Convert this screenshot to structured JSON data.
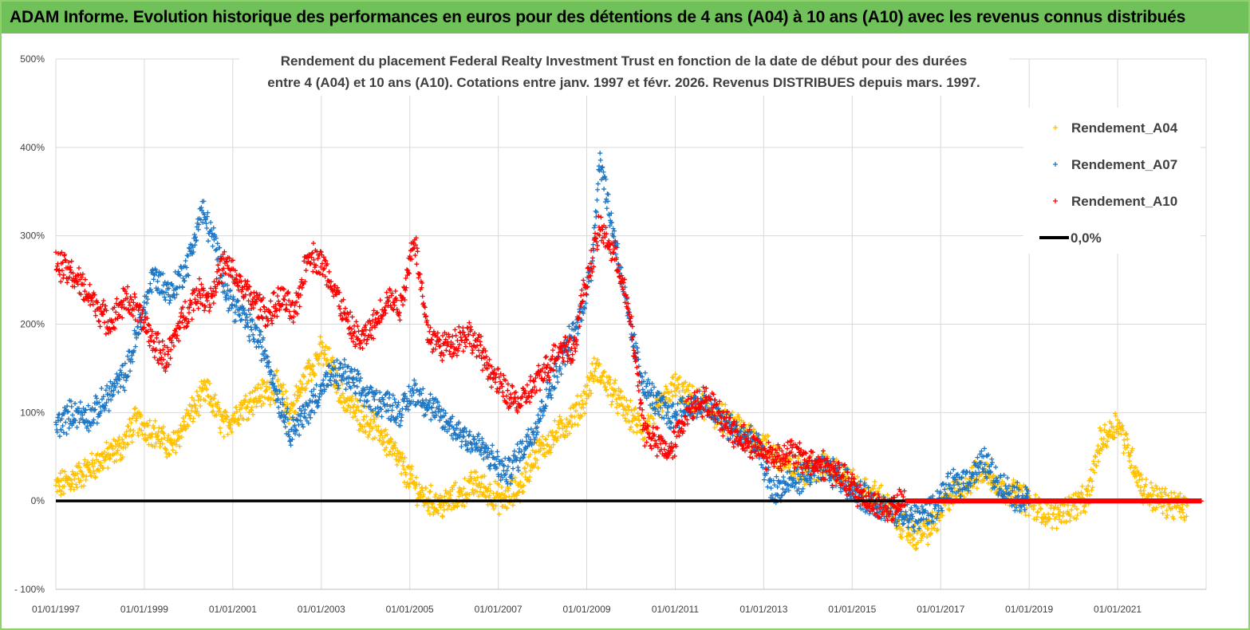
{
  "header": {
    "title": "ADAM Informe. Evolution historique des performances en euros pour des détentions de 4 ans (A04) à 10 ans (A10) avec les revenus connus distribués"
  },
  "colors": {
    "header_bg": "#70c15a",
    "A04": "#ffc000",
    "A07": "#1f77c4",
    "A10": "#ff0000",
    "zero": "#000000"
  },
  "chart_data": {
    "type": "scatter",
    "title_lines": [
      "Rendement du placement Federal Realty Investment Trust en fonction de la date de début pour des durées",
      "entre 4 (A04) et 10 ans (A10).  Cotations entre janv. 1997 et févr. 2026. Revenus  DISTRIBUES depuis mars. 1997."
    ],
    "xlabel": "",
    "ylabel": "",
    "x_ticks": [
      "01/01/1997",
      "01/01/1999",
      "01/01/2001",
      "01/01/2003",
      "01/01/2005",
      "01/01/2007",
      "01/01/2009",
      "01/01/2011",
      "01/01/2013",
      "01/01/2015",
      "01/01/2017",
      "01/01/2019",
      "01/01/2021"
    ],
    "y_ticks": [
      "- 100%",
      "0%",
      "100%",
      "200%",
      "300%",
      "400%",
      "500%"
    ],
    "ylim": [
      -100,
      500
    ],
    "xlim": [
      1997.0,
      2023.0
    ],
    "grid": "horizontal and vertical",
    "legend_position": "top-right",
    "legend": [
      "Rendement_A04",
      "Rendement_A07",
      "Rendement_A10",
      "0,0%"
    ],
    "series": [
      {
        "name": "Rendement_A04",
        "marker": "+",
        "points": [
          [
            1997.0,
            15
          ],
          [
            1997.5,
            28
          ],
          [
            1998.0,
            45
          ],
          [
            1998.5,
            62
          ],
          [
            1998.8,
            90
          ],
          [
            1999.2,
            78
          ],
          [
            1999.6,
            60
          ],
          [
            2000.0,
            95
          ],
          [
            2000.4,
            125
          ],
          [
            2000.8,
            85
          ],
          [
            2001.2,
            105
          ],
          [
            2001.6,
            120
          ],
          [
            2002.0,
            130
          ],
          [
            2002.3,
            100
          ],
          [
            2002.7,
            145
          ],
          [
            2003.0,
            170
          ],
          [
            2003.2,
            155
          ],
          [
            2003.5,
            115
          ],
          [
            2003.9,
            95
          ],
          [
            2004.3,
            80
          ],
          [
            2004.7,
            50
          ],
          [
            2005.0,
            25
          ],
          [
            2005.3,
            5
          ],
          [
            2005.7,
            -5
          ],
          [
            2006.1,
            5
          ],
          [
            2006.5,
            20
          ],
          [
            2006.8,
            10
          ],
          [
            2007.1,
            0
          ],
          [
            2007.5,
            15
          ],
          [
            2007.8,
            50
          ],
          [
            2008.2,
            70
          ],
          [
            2008.6,
            90
          ],
          [
            2008.9,
            110
          ],
          [
            2009.2,
            150
          ],
          [
            2009.5,
            130
          ],
          [
            2009.9,
            100
          ],
          [
            2010.3,
            80
          ],
          [
            2010.7,
            110
          ],
          [
            2011.0,
            130
          ],
          [
            2011.3,
            115
          ],
          [
            2011.7,
            105
          ],
          [
            2012.0,
            95
          ],
          [
            2012.4,
            85
          ],
          [
            2012.8,
            70
          ],
          [
            2013.2,
            55
          ],
          [
            2013.6,
            35
          ],
          [
            2014.0,
            35
          ],
          [
            2014.4,
            40
          ],
          [
            2014.8,
            30
          ],
          [
            2015.2,
            10
          ],
          [
            2015.6,
            5
          ],
          [
            2016.0,
            -20
          ],
          [
            2016.4,
            -40
          ],
          [
            2016.8,
            -30
          ],
          [
            2017.2,
            5
          ],
          [
            2017.6,
            20
          ],
          [
            2018.0,
            35
          ],
          [
            2018.4,
            15
          ],
          [
            2018.8,
            5
          ],
          [
            2019.2,
            -10
          ],
          [
            2019.6,
            -15
          ],
          [
            2020.0,
            -5
          ],
          [
            2020.3,
            0
          ],
          [
            2020.6,
            65
          ],
          [
            2021.0,
            90
          ],
          [
            2021.3,
            50
          ],
          [
            2021.6,
            10
          ],
          [
            2022.0,
            0
          ],
          [
            2022.3,
            -5
          ],
          [
            2022.6,
            -10
          ]
        ]
      },
      {
        "name": "Rendement_A07",
        "marker": "+",
        "points": [
          [
            1997.0,
            85
          ],
          [
            1997.4,
            100
          ],
          [
            1997.8,
            95
          ],
          [
            1998.2,
            120
          ],
          [
            1998.6,
            145
          ],
          [
            1998.9,
            200
          ],
          [
            1999.2,
            255
          ],
          [
            1999.6,
            235
          ],
          [
            2000.0,
            270
          ],
          [
            2000.3,
            330
          ],
          [
            2000.6,
            290
          ],
          [
            2000.9,
            230
          ],
          [
            2001.2,
            210
          ],
          [
            2001.5,
            190
          ],
          [
            2001.8,
            160
          ],
          [
            2002.0,
            120
          ],
          [
            2002.3,
            80
          ],
          [
            2002.6,
            95
          ],
          [
            2002.9,
            120
          ],
          [
            2003.2,
            140
          ],
          [
            2003.5,
            145
          ],
          [
            2003.8,
            130
          ],
          [
            2004.1,
            115
          ],
          [
            2004.5,
            110
          ],
          [
            2004.8,
            100
          ],
          [
            2005.1,
            125
          ],
          [
            2005.4,
            110
          ],
          [
            2005.8,
            90
          ],
          [
            2006.2,
            75
          ],
          [
            2006.6,
            60
          ],
          [
            2006.9,
            45
          ],
          [
            2007.2,
            30
          ],
          [
            2007.5,
            55
          ],
          [
            2007.8,
            80
          ],
          [
            2008.1,
            120
          ],
          [
            2008.5,
            170
          ],
          [
            2008.8,
            200
          ],
          [
            2009.1,
            260
          ],
          [
            2009.3,
            390
          ],
          [
            2009.5,
            330
          ],
          [
            2009.7,
            280
          ],
          [
            2010.0,
            190
          ],
          [
            2010.3,
            130
          ],
          [
            2010.6,
            110
          ],
          [
            2010.9,
            95
          ],
          [
            2011.2,
            105
          ],
          [
            2011.6,
            110
          ],
          [
            2011.9,
            100
          ],
          [
            2012.2,
            85
          ],
          [
            2012.6,
            70
          ],
          [
            2012.9,
            60
          ],
          [
            2013.2,
            10
          ],
          [
            2013.6,
            20
          ],
          [
            2014.0,
            30
          ],
          [
            2014.4,
            35
          ],
          [
            2014.8,
            25
          ],
          [
            2015.2,
            5
          ],
          [
            2015.6,
            -5
          ],
          [
            2016.0,
            -15
          ],
          [
            2016.4,
            -20
          ],
          [
            2016.8,
            -10
          ],
          [
            2017.2,
            15
          ],
          [
            2017.6,
            25
          ],
          [
            2018.0,
            45
          ],
          [
            2018.3,
            20
          ],
          [
            2018.7,
            5
          ],
          [
            2019.0,
            3
          ]
        ]
      },
      {
        "name": "Rendement_A10",
        "marker": "+",
        "points": [
          [
            1997.0,
            270
          ],
          [
            1997.4,
            255
          ],
          [
            1997.8,
            230
          ],
          [
            1998.2,
            200
          ],
          [
            1998.6,
            230
          ],
          [
            1998.9,
            210
          ],
          [
            1999.2,
            180
          ],
          [
            1999.5,
            160
          ],
          [
            1999.8,
            200
          ],
          [
            2000.2,
            235
          ],
          [
            2000.5,
            230
          ],
          [
            2000.8,
            270
          ],
          [
            2001.1,
            250
          ],
          [
            2001.4,
            230
          ],
          [
            2001.8,
            210
          ],
          [
            2002.1,
            230
          ],
          [
            2002.4,
            210
          ],
          [
            2002.7,
            280
          ],
          [
            2003.0,
            270
          ],
          [
            2003.3,
            240
          ],
          [
            2003.6,
            200
          ],
          [
            2003.9,
            180
          ],
          [
            2004.2,
            200
          ],
          [
            2004.5,
            230
          ],
          [
            2004.8,
            220
          ],
          [
            2005.1,
            300
          ],
          [
            2005.4,
            190
          ],
          [
            2005.7,
            175
          ],
          [
            2006.0,
            180
          ],
          [
            2006.3,
            190
          ],
          [
            2006.6,
            170
          ],
          [
            2006.9,
            140
          ],
          [
            2007.2,
            120
          ],
          [
            2007.5,
            110
          ],
          [
            2007.8,
            130
          ],
          [
            2008.1,
            150
          ],
          [
            2008.4,
            175
          ],
          [
            2008.7,
            170
          ],
          [
            2008.9,
            230
          ],
          [
            2009.1,
            270
          ],
          [
            2009.3,
            310
          ],
          [
            2009.5,
            290
          ],
          [
            2009.7,
            270
          ],
          [
            2010.0,
            200
          ],
          [
            2010.3,
            80
          ],
          [
            2010.6,
            65
          ],
          [
            2010.9,
            55
          ],
          [
            2011.2,
            95
          ],
          [
            2011.5,
            115
          ],
          [
            2011.8,
            110
          ],
          [
            2012.1,
            90
          ],
          [
            2012.4,
            75
          ],
          [
            2012.7,
            65
          ],
          [
            2013.0,
            55
          ],
          [
            2013.3,
            50
          ],
          [
            2013.6,
            55
          ],
          [
            2014.0,
            45
          ],
          [
            2014.4,
            40
          ],
          [
            2014.8,
            25
          ],
          [
            2015.2,
            5
          ],
          [
            2015.6,
            -5
          ],
          [
            2015.9,
            -10
          ],
          [
            2016.2,
            0
          ],
          [
            2016.6,
            0
          ],
          [
            2017.0,
            0
          ],
          [
            2017.5,
            0
          ],
          [
            2018.0,
            0
          ],
          [
            2018.5,
            0
          ],
          [
            2019.0,
            0
          ],
          [
            2019.5,
            0
          ],
          [
            2020.0,
            0
          ],
          [
            2020.5,
            0
          ],
          [
            2021.0,
            0
          ],
          [
            2021.5,
            0
          ],
          [
            2022.0,
            0
          ],
          [
            2022.5,
            0
          ],
          [
            2022.9,
            0
          ]
        ]
      },
      {
        "name": "0,0%",
        "type": "line",
        "points": [
          [
            1997.0,
            0
          ],
          [
            2016.2,
            0
          ]
        ]
      }
    ]
  }
}
